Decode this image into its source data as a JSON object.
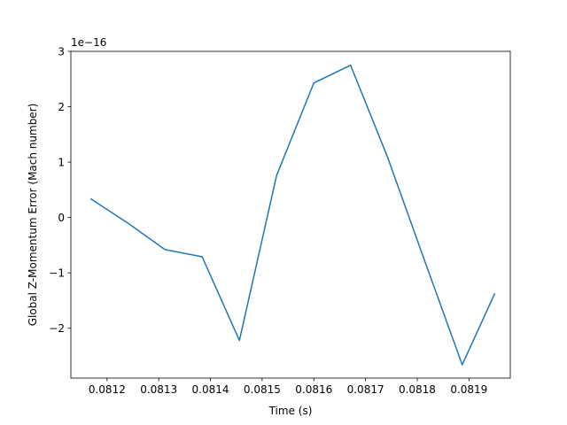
{
  "chart_data": {
    "type": "line",
    "title": "",
    "xlabel": "Time (s)",
    "ylabel": "Global Z-Momentum Error (Mach number)",
    "y_offset_label": "1e−16",
    "xlim": [
      0.08113,
      0.08198
    ],
    "ylim": [
      -2.9,
      3.0
    ],
    "x_ticks": [
      0.0812,
      0.0813,
      0.0814,
      0.0815,
      0.0816,
      0.0817,
      0.0818,
      0.0819
    ],
    "x_tick_labels": [
      "0.0812",
      "0.0813",
      "0.0814",
      "0.0815",
      "0.0816",
      "0.0817",
      "0.0818",
      "0.0819"
    ],
    "y_ticks": [
      -2,
      -1,
      0,
      1,
      2,
      3
    ],
    "y_tick_labels": [
      "−2",
      "−1",
      "0",
      "1",
      "2",
      "3"
    ],
    "grid": false,
    "series": [
      {
        "color": "#1f77b4",
        "x": [
          0.081168,
          0.08124,
          0.081312,
          0.081384,
          0.081456,
          0.081528,
          0.0816,
          0.081671,
          0.081743,
          0.081815,
          0.081887,
          0.08195
        ],
        "y": [
          0.34,
          -0.1,
          -0.58,
          -0.71,
          -2.22,
          0.76,
          2.43,
          2.75,
          1.08,
          -0.8,
          -2.66,
          -1.37
        ]
      }
    ]
  }
}
